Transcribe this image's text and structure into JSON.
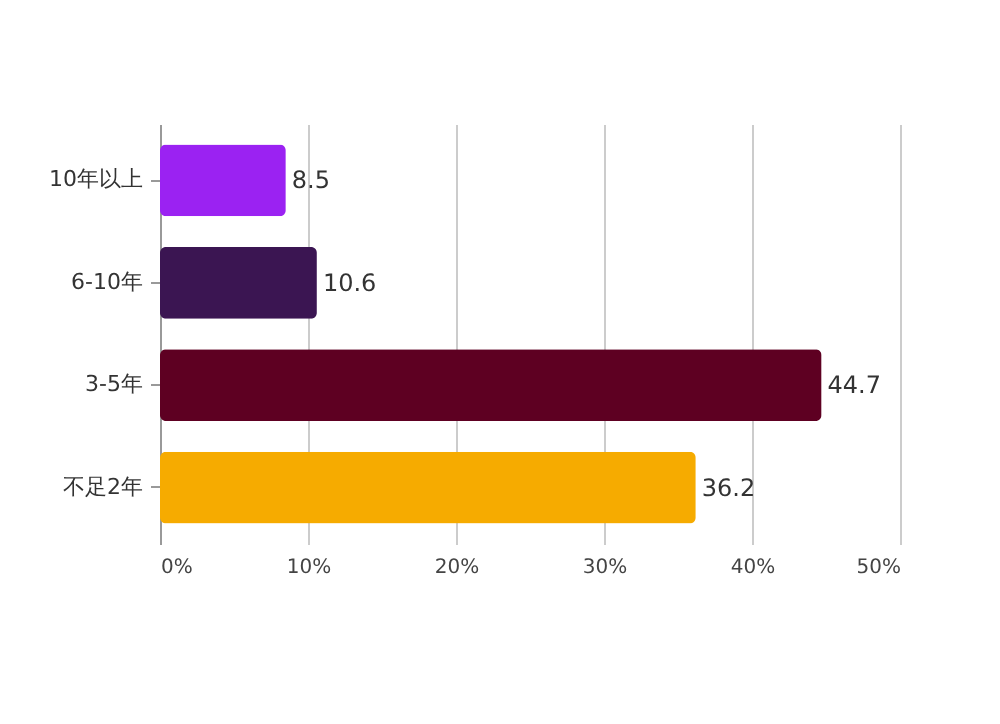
{
  "chart_data": {
    "type": "bar",
    "orientation": "horizontal",
    "categories": [
      "10年以上",
      "6-10年",
      "3-5年",
      "不足2年"
    ],
    "values": [
      8.5,
      10.6,
      44.7,
      36.2
    ],
    "colors": [
      "#9b22f2",
      "#3b1552",
      "#5e0022",
      "#f6ab00"
    ],
    "xlim": [
      0,
      50
    ],
    "xticks": [
      {
        "value": 0,
        "label": "0%"
      },
      {
        "value": 10,
        "label": "10%"
      },
      {
        "value": 20,
        "label": "20%"
      },
      {
        "value": 30,
        "label": "30%"
      },
      {
        "value": 40,
        "label": "40%"
      },
      {
        "value": 50,
        "label": "50%"
      }
    ],
    "grid": "x",
    "data_labels": true
  }
}
